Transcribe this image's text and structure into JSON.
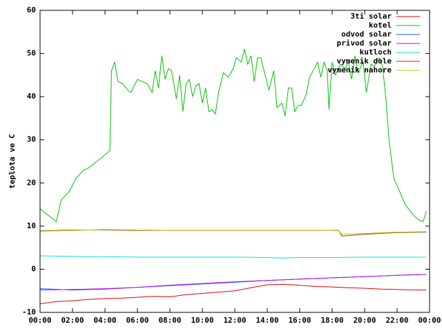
{
  "chart_data": {
    "type": "line",
    "ylabel": "teplota ve C",
    "xlim": [
      0,
      24
    ],
    "xticks": [
      {
        "value": 0,
        "label": "00:00"
      },
      {
        "value": 2,
        "label": "02:00"
      },
      {
        "value": 4,
        "label": "04:00"
      },
      {
        "value": 6,
        "label": "06:00"
      },
      {
        "value": 8,
        "label": "08:00"
      },
      {
        "value": 10,
        "label": "10:00"
      },
      {
        "value": 12,
        "label": "12:00"
      },
      {
        "value": 14,
        "label": "14:00"
      },
      {
        "value": 16,
        "label": "16:00"
      },
      {
        "value": 18,
        "label": "18:00"
      },
      {
        "value": 20,
        "label": "20:00"
      },
      {
        "value": 22,
        "label": "22:00"
      },
      {
        "value": 24,
        "label": "00:00"
      }
    ],
    "ylim": [
      -10,
      60
    ],
    "yticks": [
      -10,
      0,
      10,
      20,
      30,
      40,
      50,
      60
    ],
    "legend": "top-right",
    "grid": false,
    "series": [
      {
        "name": "3ti solar",
        "color": "#e00000",
        "x": [
          0,
          1,
          2,
          3,
          4,
          5,
          6,
          7,
          8,
          9,
          10,
          11,
          12,
          13,
          14,
          15,
          16,
          17,
          18,
          19,
          20,
          21,
          22,
          23,
          23.8
        ],
        "values": [
          -8,
          -7.5,
          -7.3,
          -7,
          -6.8,
          -6.7,
          -6.5,
          -6.3,
          -6.4,
          -5.9,
          -5.6,
          -5.3,
          -5,
          -4.3,
          -3.6,
          -3.5,
          -3.7,
          -4,
          -4.1,
          -4.3,
          -4.4,
          -4.6,
          -4.7,
          -4.8,
          -4.8
        ]
      },
      {
        "name": "kotel",
        "color": "#00c000",
        "x": [
          0,
          0.5,
          1.0,
          1.3,
          1.8,
          2.2,
          2.7,
          3.0,
          3.5,
          4.0,
          4.3,
          4.4,
          4.6,
          4.8,
          5.1,
          5.4,
          5.6,
          6.0,
          6.3,
          6.6,
          6.9,
          7.1,
          7.3,
          7.5,
          7.7,
          7.9,
          8.1,
          8.4,
          8.6,
          8.8,
          9.0,
          9.2,
          9.4,
          9.6,
          9.8,
          10.0,
          10.2,
          10.4,
          10.6,
          10.8,
          11.0,
          11.3,
          11.6,
          11.9,
          12.1,
          12.4,
          12.6,
          12.8,
          13.0,
          13.2,
          13.4,
          13.6,
          13.9,
          14.1,
          14.4,
          14.6,
          14.9,
          15.1,
          15.3,
          15.5,
          15.7,
          15.9,
          16.1,
          16.4,
          16.6,
          16.9,
          17.1,
          17.3,
          17.5,
          17.7,
          17.8,
          18.0,
          18.2,
          18.5,
          18.8,
          19.0,
          19.2,
          19.4,
          19.6,
          19.9,
          20.1,
          20.4,
          20.6,
          20.9,
          21.1,
          21.3,
          21.5,
          21.8,
          22.1,
          22.5,
          22.9,
          23.3,
          23.6,
          23.8
        ],
        "values": [
          14,
          12.5,
          11,
          16,
          18,
          21,
          23,
          23.5,
          25,
          26.5,
          27.5,
          46,
          48,
          43.5,
          43,
          41.5,
          41,
          44,
          43.5,
          43,
          41,
          46,
          42,
          49.5,
          44,
          46.5,
          46,
          39.5,
          45,
          36.5,
          43,
          44,
          40,
          42.5,
          43,
          38.5,
          42,
          36.5,
          37,
          36,
          41,
          45.5,
          44.5,
          46.5,
          49,
          48,
          51,
          47.5,
          49.5,
          43.5,
          49,
          49,
          44.5,
          41.5,
          46,
          37.5,
          38.5,
          35.5,
          42,
          42,
          36.5,
          38,
          38,
          40.5,
          44.5,
          46.5,
          48,
          44.5,
          48,
          46,
          37,
          48,
          45,
          47.5,
          46.5,
          48,
          44,
          49.5,
          45.5,
          48,
          41,
          47.5,
          47,
          49,
          47,
          40,
          30,
          21,
          18.5,
          15,
          13,
          11.5,
          11,
          13.5
        ]
      },
      {
        "name": "odvod solar",
        "color": "#0050ff",
        "x": [
          0,
          2,
          4,
          6,
          8,
          10,
          12,
          14,
          16,
          18,
          20,
          22,
          23.8
        ],
        "values": [
          -4.5,
          -4.8,
          -4.6,
          -4.2,
          -3.8,
          -3.4,
          -3,
          -2.6,
          -2.3,
          -2,
          -1.7,
          -1.4,
          -1.2
        ]
      },
      {
        "name": "privod solar",
        "color": "#c000ff",
        "x": [
          0,
          2,
          4,
          6,
          8,
          10,
          12,
          14,
          16,
          18,
          20,
          22,
          23.8
        ],
        "values": [
          -4.8,
          -4.7,
          -4.5,
          -4.2,
          -3.7,
          -3.3,
          -2.9,
          -2.6,
          -2.3,
          -2,
          -1.7,
          -1.4,
          -1.2
        ]
      },
      {
        "name": "kutloch",
        "color": "#00e0e0",
        "x": [
          0,
          2,
          4,
          6,
          8,
          10,
          12,
          14,
          15,
          16,
          18,
          20,
          22,
          23.8
        ],
        "values": [
          3.1,
          3,
          2.9,
          2.8,
          2.8,
          2.8,
          2.8,
          2.7,
          2.6,
          2.7,
          2.7,
          2.8,
          2.8,
          2.8
        ]
      },
      {
        "name": "vymenik dole",
        "color": "#a04000",
        "x": [
          0,
          2,
          4,
          6,
          8,
          10,
          12,
          14,
          16,
          18,
          18.4,
          18.6,
          19,
          20,
          22,
          23.8
        ],
        "values": [
          8.9,
          9.1,
          9.1,
          9,
          9,
          9,
          9,
          9,
          9,
          9,
          9,
          7.7,
          7.8,
          8.1,
          8.5,
          8.6
        ]
      },
      {
        "name": "vymenik nahore",
        "color": "#c8c000",
        "x": [
          0,
          2,
          4,
          6,
          8,
          10,
          12,
          14,
          16,
          18,
          18.4,
          18.6,
          20,
          22,
          23.8
        ],
        "values": [
          8.8,
          9,
          9.2,
          9.1,
          9,
          9,
          9,
          9,
          9,
          9,
          8.9,
          8.1,
          8.3,
          8.6,
          8.7
        ]
      }
    ]
  }
}
